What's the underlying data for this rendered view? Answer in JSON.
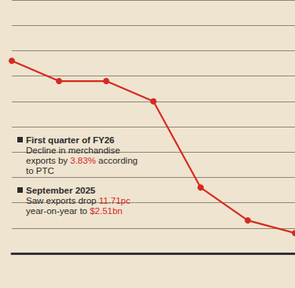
{
  "chart_data": {
    "type": "line",
    "categories": [
      null,
      null,
      null,
      null,
      null,
      null,
      null
    ],
    "values": [
      7.6,
      6.8,
      6.8,
      6.0,
      2.6,
      1.3,
      0.8
    ],
    "color": "#d62a1e",
    "marker": "circle",
    "ylim": [
      0,
      10
    ],
    "yticks": [
      0,
      1,
      2,
      3,
      4,
      5,
      6,
      7,
      8,
      9,
      10
    ],
    "grid": true,
    "tick_labels": false,
    "annotations": [
      {
        "heading": "First quarter of FY26",
        "lines": [
          "Decline in merchandise",
          "exports by 3.83% according",
          "to PTC"
        ],
        "highlights": [
          "3.83%"
        ]
      },
      {
        "heading": "September 2025",
        "lines": [
          "Saw exports drop 11.71pc",
          "year-on-year to $2.51bn"
        ],
        "highlights": [
          "11.71pc",
          "$2.51bn"
        ]
      }
    ]
  }
}
